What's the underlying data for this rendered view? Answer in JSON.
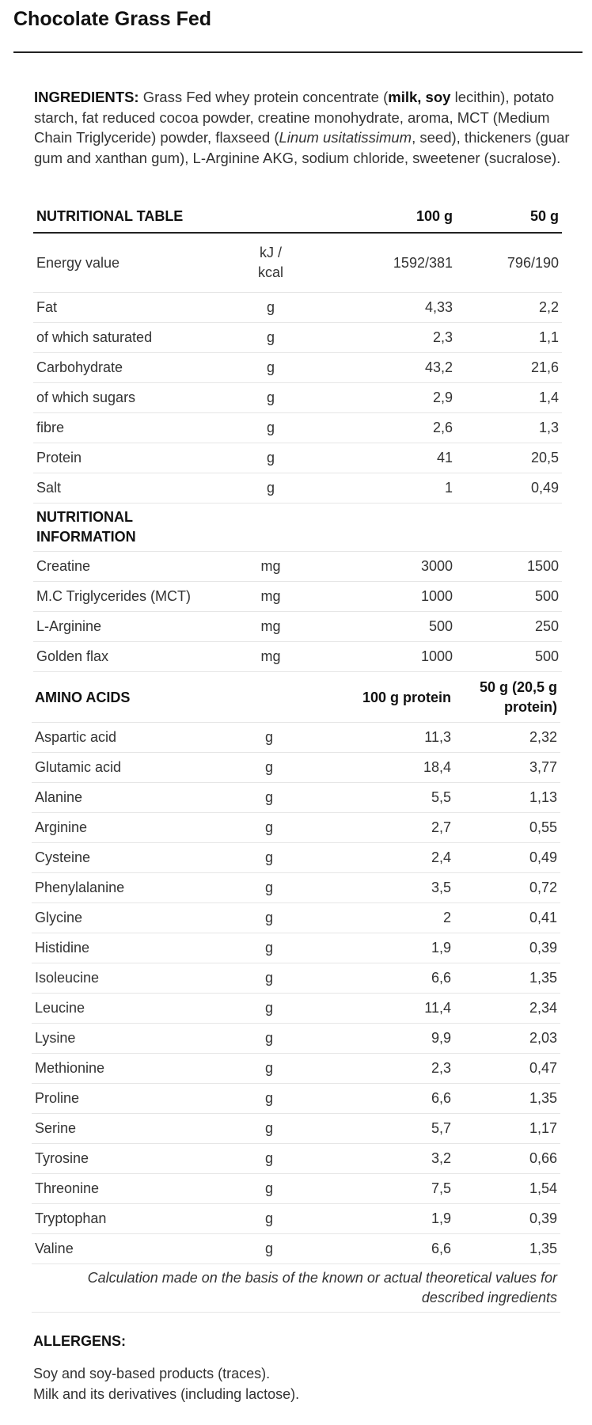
{
  "title": "Chocolate Grass Fed",
  "ingredients": {
    "label": "INGREDIENTS:",
    "t1": " Grass Fed whey protein concentrate (",
    "b1": "milk, soy",
    "t2": " lecithin), potato starch, fat reduced cocoa powder, creatine monohydrate, aroma, MCT (Medium Chain Triglyceride) powder, flaxseed (",
    "i1": "Linum usitatissimum",
    "t3": ", seed), thickeners (guar gum and xanthan gum), L-Arginine AKG, sodium chloride, sweetener (sucralose)."
  },
  "nutrition": {
    "header": [
      "NUTRITIONAL TABLE",
      "",
      "100 g",
      "50 g"
    ],
    "energy": {
      "name": "Energy value",
      "unit1": "kJ /",
      "unit2": "kcal",
      "v100": "1592/381",
      "v50": "796/190"
    },
    "rows": [
      [
        "Fat",
        "g",
        "4,33",
        "2,2"
      ],
      [
        "of which saturated",
        "g",
        "2,3",
        "1,1"
      ],
      [
        "Carbohydrate",
        "g",
        "43,2",
        "21,6"
      ],
      [
        "of which sugars",
        "g",
        "2,9",
        "1,4"
      ],
      [
        "fibre",
        "g",
        "2,6",
        "1,3"
      ],
      [
        "Protein",
        "g",
        "41",
        "20,5"
      ],
      [
        "Salt",
        "g",
        "1",
        "0,49"
      ]
    ],
    "info_header_1": "NUTRITIONAL",
    "info_header_2": "INFORMATION",
    "info_rows": [
      [
        "Creatine",
        "mg",
        "3000",
        "1500"
      ],
      [
        "M.C Triglycerides (MCT)",
        "mg",
        "1000",
        "500"
      ],
      [
        "L-Arginine",
        "mg",
        "500",
        "250"
      ],
      [
        "Golden flax",
        "mg",
        "1000",
        "500"
      ]
    ]
  },
  "amino": {
    "header": [
      "AMINO ACIDS",
      "",
      "100 g protein",
      "50 g (20,5 g",
      "protein)"
    ],
    "rows": [
      [
        "Aspartic acid",
        "g",
        "11,3",
        "2,32"
      ],
      [
        "Glutamic acid",
        "g",
        "18,4",
        "3,77"
      ],
      [
        "Alanine",
        "g",
        "5,5",
        "1,13"
      ],
      [
        "Arginine",
        "g",
        "2,7",
        "0,55"
      ],
      [
        "Cysteine",
        "g",
        "2,4",
        "0,49"
      ],
      [
        "Phenylalanine",
        "g",
        "3,5",
        "0,72"
      ],
      [
        "Glycine",
        "g",
        "2",
        "0,41"
      ],
      [
        "Histidine",
        "g",
        "1,9",
        "0,39"
      ],
      [
        "Isoleucine",
        "g",
        "6,6",
        "1,35"
      ],
      [
        "Leucine",
        "g",
        "11,4",
        "2,34"
      ],
      [
        "Lysine",
        "g",
        "9,9",
        "2,03"
      ],
      [
        "Methionine",
        "g",
        "2,3",
        "0,47"
      ],
      [
        "Proline",
        "g",
        "6,6",
        "1,35"
      ],
      [
        "Serine",
        "g",
        "5,7",
        "1,17"
      ],
      [
        "Tyrosine",
        "g",
        "3,2",
        "0,66"
      ],
      [
        "Threonine",
        "g",
        "7,5",
        "1,54"
      ],
      [
        "Tryptophan",
        "g",
        "1,9",
        "0,39"
      ],
      [
        "Valine",
        "g",
        "6,6",
        "1,35"
      ]
    ],
    "note_1": "Calculation made on the basis of the known or actual theoretical values for",
    "note_2": "described ingredients"
  },
  "allergens": {
    "title": "ALLERGENS:",
    "line1": "Soy and soy-based products (traces).",
    "line2": "Milk and its derivatives (including lactose)."
  }
}
